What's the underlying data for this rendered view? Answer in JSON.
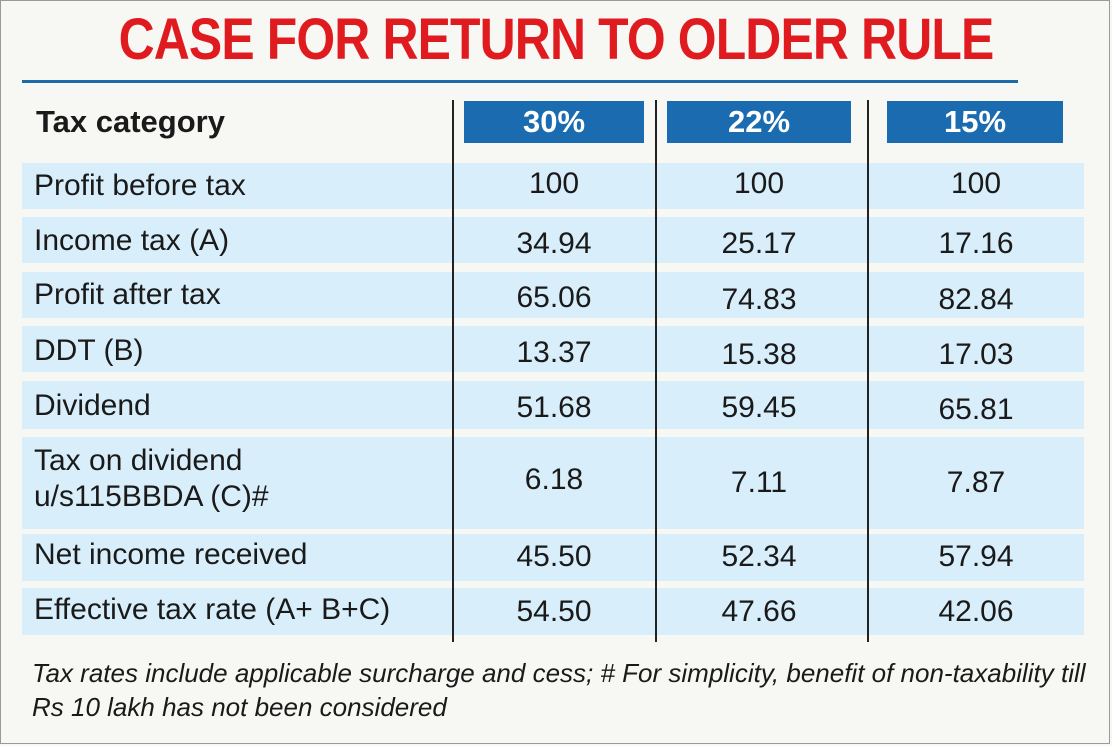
{
  "title": "CASE FOR RETURN TO OLDER RULE",
  "table": {
    "header_label": "Tax category",
    "rates": [
      "30%",
      "22%",
      "15%"
    ],
    "rows": [
      {
        "label": "Profit before tax",
        "values": [
          "100",
          "100",
          "100"
        ]
      },
      {
        "label": "Income tax (A)",
        "values": [
          "34.94",
          "25.17",
          "17.16"
        ]
      },
      {
        "label": "Profit after tax",
        "values": [
          "65.06",
          "74.83",
          "82.84"
        ]
      },
      {
        "label": "DDT (B)",
        "values": [
          "13.37",
          "15.38",
          "17.03"
        ]
      },
      {
        "label": "Dividend",
        "values": [
          "51.68",
          "59.45",
          "65.81"
        ]
      },
      {
        "label": "Tax on dividend",
        "label2": "u/s115BBDA (C)#",
        "values": [
          "6.18",
          "7.11",
          "7.87"
        ]
      },
      {
        "label": "Net income received",
        "values": [
          "45.50",
          "52.34",
          "57.94"
        ]
      },
      {
        "label": "Effective tax rate (A+ B+C)",
        "values": [
          "54.50",
          "47.66",
          "42.06"
        ]
      }
    ]
  },
  "note": "Tax rates include applicable surcharge and cess; # For simplicity, benefit of non-taxability till Rs 10 lakh has not been considered",
  "colors": {
    "title": "#e01b1f",
    "header_chip": "#1a6bb0",
    "row_band": "#d8eefa"
  }
}
